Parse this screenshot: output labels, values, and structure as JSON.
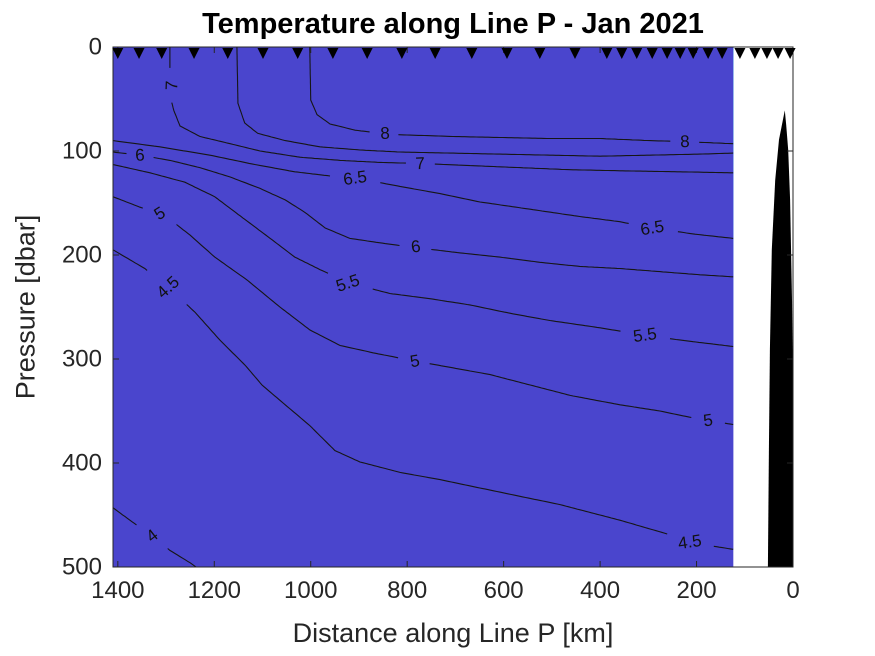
{
  "chart_data": {
    "type": "filled_contour_section",
    "title": "Temperature along Line P - Jan 2021",
    "xlabel": "Distance along Line P [km]",
    "ylabel": "Pressure [dbar]",
    "x_axis_reversed": true,
    "xlim": [
      1410,
      0
    ],
    "ylim": [
      0,
      500
    ],
    "x_ticks": [
      1400,
      1200,
      1000,
      800,
      600,
      400,
      200,
      0
    ],
    "y_ticks": [
      0,
      100,
      200,
      300,
      400,
      500
    ],
    "data_extent_km": [
      124,
      1410
    ],
    "axis_color": "#262626",
    "contour_line_color": "#161616",
    "levels_c": [
      4,
      4.5,
      5,
      5.5,
      6,
      6.5,
      7,
      7.5,
      8
    ],
    "band_colors_low_to_high": [
      "#4a45cd",
      "#4b4dd8",
      "#4956e3",
      "#4560ee",
      "#3f6bf3",
      "#3a77f1",
      "#3382eb",
      "#2e90e7",
      "#2b9be3",
      "#24a7e1"
    ],
    "contours": [
      {
        "level": 4,
        "points": [
          [
            1410,
            443
          ],
          [
            1375,
            455
          ],
          [
            1329,
            470
          ],
          [
            1292,
            484
          ],
          [
            1250,
            496
          ],
          [
            1238,
            500
          ]
        ]
      },
      {
        "level": 4.5,
        "points": [
          [
            1410,
            195
          ],
          [
            1344,
            213
          ],
          [
            1296,
            231
          ],
          [
            1240,
            255
          ],
          [
            1188,
            282
          ],
          [
            1136,
            306
          ],
          [
            1101,
            325
          ],
          [
            1053,
            344
          ],
          [
            1002,
            364
          ],
          [
            950,
            388
          ],
          [
            898,
            399
          ],
          [
            815,
            409
          ],
          [
            732,
            416
          ],
          [
            608,
            428
          ],
          [
            483,
            440
          ],
          [
            359,
            455
          ],
          [
            255,
            469
          ],
          [
            193,
            478
          ],
          [
            124,
            483
          ]
        ]
      },
      {
        "level": 5,
        "points": [
          [
            1410,
            144
          ],
          [
            1354,
            154
          ],
          [
            1302,
            162
          ],
          [
            1250,
            181
          ],
          [
            1199,
            202
          ],
          [
            1132,
            224
          ],
          [
            1064,
            250
          ],
          [
            1002,
            272
          ],
          [
            939,
            287
          ],
          [
            871,
            294
          ],
          [
            784,
            302
          ],
          [
            711,
            308
          ],
          [
            628,
            315
          ],
          [
            545,
            325
          ],
          [
            462,
            335
          ],
          [
            359,
            344
          ],
          [
            276,
            350
          ],
          [
            193,
            358
          ],
          [
            124,
            363
          ]
        ]
      },
      {
        "level": 5.5,
        "points": [
          [
            1410,
            113
          ],
          [
            1333,
            121
          ],
          [
            1261,
            130
          ],
          [
            1199,
            144
          ],
          [
            1136,
            166
          ],
          [
            1084,
            184
          ],
          [
            1033,
            202
          ],
          [
            981,
            214
          ],
          [
            919,
            227
          ],
          [
            836,
            237
          ],
          [
            753,
            242
          ],
          [
            670,
            248
          ],
          [
            587,
            256
          ],
          [
            504,
            263
          ],
          [
            400,
            270
          ],
          [
            297,
            278
          ],
          [
            213,
            283
          ],
          [
            124,
            288
          ]
        ]
      },
      {
        "level": 6,
        "points": [
          [
            1410,
            101
          ],
          [
            1354,
            104
          ],
          [
            1292,
            109
          ],
          [
            1230,
            116
          ],
          [
            1167,
            125
          ],
          [
            1105,
            136
          ],
          [
            1053,
            147
          ],
          [
            1012,
            159
          ],
          [
            970,
            174
          ],
          [
            919,
            184
          ],
          [
            846,
            189
          ],
          [
            780,
            193
          ],
          [
            690,
            198
          ],
          [
            608,
            202
          ],
          [
            525,
            207
          ],
          [
            442,
            211
          ],
          [
            359,
            213
          ],
          [
            276,
            216
          ],
          [
            193,
            219
          ],
          [
            124,
            221
          ]
        ]
      },
      {
        "level": 6.5,
        "points": [
          [
            1410,
            90
          ],
          [
            1313,
            96
          ],
          [
            1209,
            104
          ],
          [
            1116,
            113
          ],
          [
            1033,
            120
          ],
          [
            960,
            124
          ],
          [
            908,
            126
          ],
          [
            815,
            134
          ],
          [
            732,
            141
          ],
          [
            649,
            149
          ],
          [
            545,
            156
          ],
          [
            442,
            163
          ],
          [
            359,
            168
          ],
          [
            292,
            174
          ],
          [
            203,
            180
          ],
          [
            124,
            184
          ]
        ]
      },
      {
        "level": 7,
        "points": [
          [
            1292,
            0
          ],
          [
            1292,
            46
          ],
          [
            1284,
            61
          ],
          [
            1271,
            76
          ],
          [
            1230,
            86
          ],
          [
            1167,
            93
          ],
          [
            1105,
            100
          ],
          [
            1022,
            106
          ],
          [
            939,
            109
          ],
          [
            856,
            111
          ],
          [
            773,
            112
          ],
          [
            670,
            114
          ],
          [
            566,
            116
          ],
          [
            462,
            118
          ],
          [
            359,
            119
          ],
          [
            234,
            120
          ],
          [
            124,
            121
          ]
        ]
      },
      {
        "level": 7.5,
        "points": [
          [
            1153,
            0
          ],
          [
            1151,
            54
          ],
          [
            1137,
            73
          ],
          [
            1110,
            83
          ],
          [
            1053,
            90
          ],
          [
            981,
            96
          ],
          [
            898,
            99
          ],
          [
            815,
            101
          ],
          [
            711,
            102
          ],
          [
            608,
            103
          ],
          [
            504,
            104
          ],
          [
            400,
            105
          ],
          [
            297,
            104
          ],
          [
            193,
            103
          ],
          [
            124,
            102
          ]
        ]
      },
      {
        "level": 8,
        "points": [
          [
            1002,
            0
          ],
          [
            1000,
            51
          ],
          [
            987,
            65
          ],
          [
            960,
            74
          ],
          [
            908,
            80
          ],
          [
            836,
            84
          ],
          [
            711,
            86
          ],
          [
            608,
            87
          ],
          [
            504,
            88
          ],
          [
            400,
            88
          ],
          [
            297,
            90
          ],
          [
            224,
            91
          ],
          [
            124,
            93
          ]
        ]
      }
    ],
    "closed_contours": [
      {
        "level": 4,
        "points": [
          [
            1410,
            407
          ],
          [
            1402,
            411
          ],
          [
            1400,
            414
          ],
          [
            1404,
            419
          ],
          [
            1410,
            422
          ]
        ]
      }
    ],
    "contour_labels": [
      {
        "level": 7,
        "text": "7",
        "km": 1288,
        "dbar": 37,
        "rot": -88
      },
      {
        "level": 8,
        "text": "8",
        "km": 846,
        "dbar": 83,
        "rot": -2
      },
      {
        "level": 8,
        "text": "8",
        "km": 224,
        "dbar": 91,
        "rot": -2
      },
      {
        "level": 7,
        "text": "7",
        "km": 773,
        "dbar": 112,
        "rot": -3
      },
      {
        "level": 6.5,
        "text": "6.5",
        "km": 908,
        "dbar": 126,
        "rot": -8
      },
      {
        "level": 6.5,
        "text": "6.5",
        "km": 292,
        "dbar": 174,
        "rot": -10
      },
      {
        "level": 6,
        "text": "6",
        "km": 1354,
        "dbar": 104,
        "rot": -3
      },
      {
        "level": 6,
        "text": "6",
        "km": 782,
        "dbar": 192,
        "rot": -8
      },
      {
        "level": 5.5,
        "text": "5.5",
        "km": 923,
        "dbar": 227,
        "rot": -18
      },
      {
        "level": 5.5,
        "text": "5.5",
        "km": 307,
        "dbar": 277,
        "rot": -8
      },
      {
        "level": 5,
        "text": "5",
        "km": 1313,
        "dbar": 160,
        "rot": -32
      },
      {
        "level": 5,
        "text": "5",
        "km": 784,
        "dbar": 302,
        "rot": -10
      },
      {
        "level": 5,
        "text": "5",
        "km": 176,
        "dbar": 359,
        "rot": -8
      },
      {
        "level": 4.5,
        "text": "4.5",
        "km": 1296,
        "dbar": 231,
        "rot": -42
      },
      {
        "level": 4.5,
        "text": "4.5",
        "km": 214,
        "dbar": 476,
        "rot": -8
      },
      {
        "level": 4,
        "text": "4",
        "km": 1329,
        "dbar": 470,
        "rot": -38
      }
    ],
    "station_marker": {
      "shape": "triangle-down",
      "color": "#000000"
    },
    "stations_km": [
      1400,
      1356,
      1309,
      1242,
      1172,
      1099,
      1027,
      954,
      883,
      811,
      742,
      666,
      593,
      525,
      452,
      386,
      355,
      324,
      292,
      261,
      234,
      207,
      176,
      147,
      110,
      79,
      54,
      31,
      6
    ],
    "bathymetry": {
      "color": "#000000",
      "points": [
        [
          17,
          61
        ],
        [
          29,
          89
        ],
        [
          37,
          128
        ],
        [
          44,
          195
        ],
        [
          48,
          291
        ],
        [
          50,
          388
        ],
        [
          52,
          500
        ],
        [
          0,
          500
        ],
        [
          0,
          340
        ],
        [
          2,
          243
        ],
        [
          6,
          147
        ],
        [
          10,
          99
        ],
        [
          14,
          75
        ]
      ]
    }
  }
}
